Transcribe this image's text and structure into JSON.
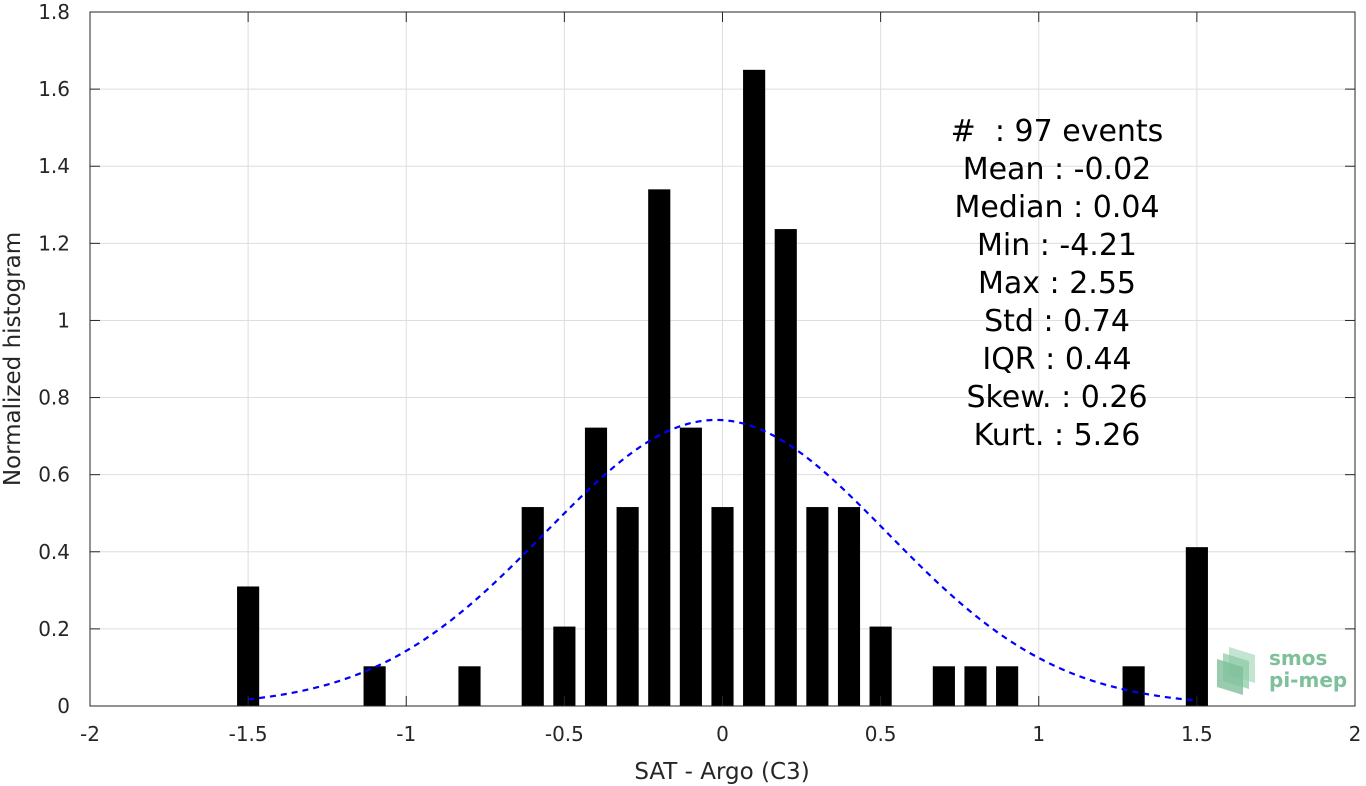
{
  "chart_data": {
    "type": "bar",
    "xlabel": "SAT - Argo (C3)",
    "ylabel": "Normalized histogram",
    "xlim": [
      -2,
      2
    ],
    "ylim": [
      0,
      1.8
    ],
    "x_ticks": [
      -2,
      -1.5,
      -1,
      -0.5,
      0,
      0.5,
      1,
      1.5,
      2
    ],
    "x_tick_labels": [
      "-2",
      "-1.5",
      "-1",
      "-0.5",
      "0",
      "0.5",
      "1",
      "1.5",
      "2"
    ],
    "y_ticks": [
      0,
      0.2,
      0.4,
      0.6,
      0.8,
      1,
      1.2,
      1.4,
      1.6,
      1.8
    ],
    "y_tick_labels": [
      "0",
      "0.2",
      "0.4",
      "0.6",
      "0.8",
      "1",
      "1.2",
      "1.4",
      "1.6",
      "1.8"
    ],
    "grid": true,
    "bar_color": "#000000",
    "bar_width": 0.07,
    "bars": [
      {
        "x": -1.5,
        "value": 0.31
      },
      {
        "x": -1.1,
        "value": 0.103
      },
      {
        "x": -0.8,
        "value": 0.103
      },
      {
        "x": -0.6,
        "value": 0.516
      },
      {
        "x": -0.5,
        "value": 0.206
      },
      {
        "x": -0.4,
        "value": 0.722
      },
      {
        "x": -0.3,
        "value": 0.516
      },
      {
        "x": -0.2,
        "value": 1.34
      },
      {
        "x": -0.1,
        "value": 0.722
      },
      {
        "x": 0.0,
        "value": 0.516
      },
      {
        "x": 0.1,
        "value": 1.65
      },
      {
        "x": 0.2,
        "value": 1.237
      },
      {
        "x": 0.3,
        "value": 0.516
      },
      {
        "x": 0.4,
        "value": 0.516
      },
      {
        "x": 0.5,
        "value": 0.206
      },
      {
        "x": 0.7,
        "value": 0.103
      },
      {
        "x": 0.8,
        "value": 0.103
      },
      {
        "x": 0.9,
        "value": 0.103
      },
      {
        "x": 1.3,
        "value": 0.103
      },
      {
        "x": 1.5,
        "value": 0.412
      }
    ],
    "fit_curve": {
      "style": "dashed",
      "color": "#0000ff",
      "mean": -0.02,
      "std": 0.54,
      "peak": 0.742,
      "x_range": [
        -1.5,
        1.5
      ]
    },
    "stats_lines": [
      "#  : 97 events",
      "Mean : -0.02",
      "Median : 0.04",
      "Min : -4.21",
      "Max : 2.55",
      "Std : 0.74",
      "IQR : 0.44",
      "Skew. : 0.26",
      "Kurt. : 5.26"
    ]
  },
  "logo": {
    "line1": "smos",
    "line2": "pi-mep",
    "color": "#7fbf9a"
  }
}
